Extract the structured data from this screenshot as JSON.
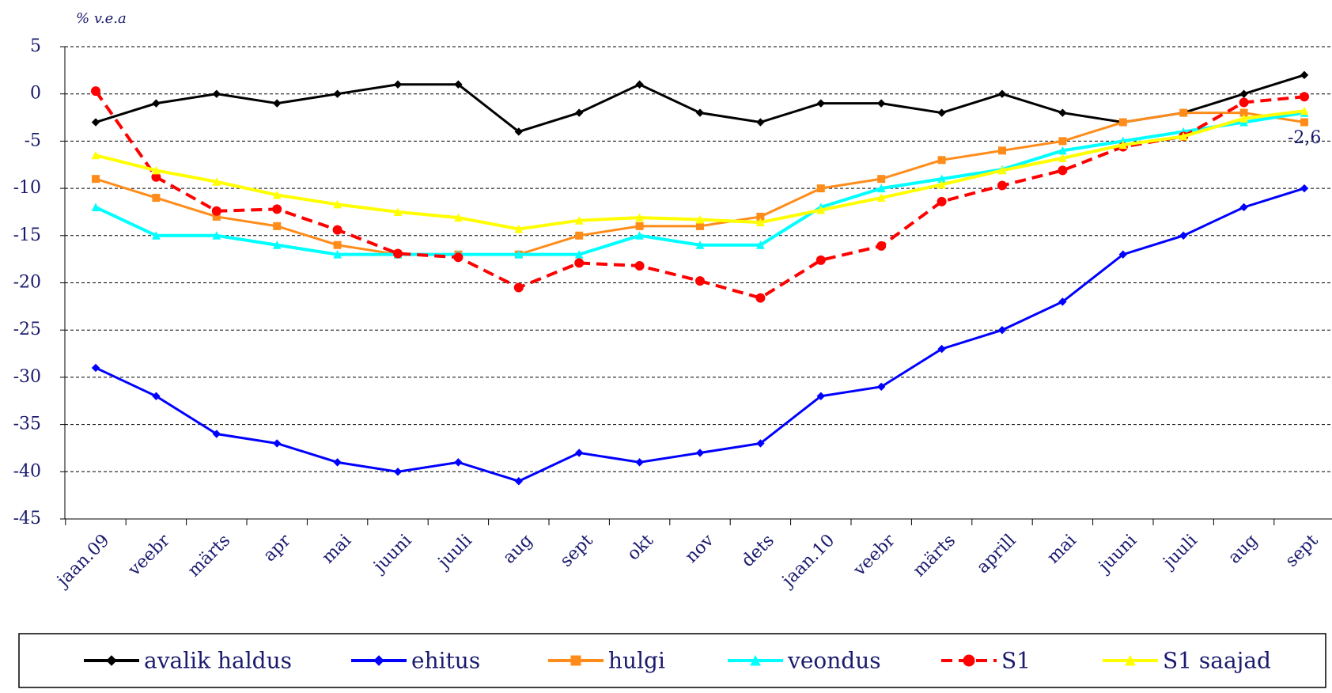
{
  "chart_data": {
    "type": "line",
    "y_label": "% v.e.a",
    "categories": [
      "jaan.09",
      "veebr",
      "märts",
      "apr",
      "mai",
      "juuni",
      "juuli",
      "aug",
      "sept",
      "okt",
      "nov",
      "dets",
      "jaan.10",
      "veebr",
      "märts",
      "aprill",
      "mai",
      "juuni",
      "juuli",
      "aug",
      "sept"
    ],
    "series": [
      {
        "name": "avalik haldus",
        "color": "#000000",
        "marker": "diamond",
        "dash": false,
        "values": [
          -3,
          -1,
          0,
          -1,
          0,
          1,
          1,
          -4,
          -2,
          1,
          -2,
          -3,
          -1,
          -1,
          -2,
          0,
          -2,
          -3,
          -2,
          0,
          2
        ]
      },
      {
        "name": "ehitus",
        "color": "#0000ff",
        "marker": "diamond",
        "dash": false,
        "values": [
          -29,
          -32,
          -36,
          -37,
          -39,
          -40,
          -39,
          -41,
          -38,
          -39,
          -38,
          -37,
          -32,
          -31,
          -27,
          -25,
          -22,
          -17,
          -15,
          -12,
          -10
        ]
      },
      {
        "name": "hulgi",
        "color": "#ff8c1a",
        "marker": "square",
        "dash": false,
        "values": [
          -9,
          -11,
          -13,
          -14,
          -16,
          -17,
          -17,
          -17,
          -15,
          -14,
          -14,
          -13,
          -10,
          -9,
          -7,
          -6,
          -5,
          -3,
          -2,
          -2,
          -3
        ]
      },
      {
        "name": "veondus",
        "color": "#00ffff",
        "marker": "triangle",
        "dash": false,
        "values": [
          -12,
          -15,
          -15,
          -16,
          -17,
          -17,
          -17,
          -17,
          -17,
          -15,
          -16,
          -16,
          -12,
          -10,
          -9,
          -8,
          -6,
          -5,
          -4,
          -3,
          -2
        ]
      },
      {
        "name": "S1",
        "color": "#ff0000",
        "marker": "circle",
        "dash": true,
        "values": [
          0.3,
          -8.8,
          -12.4,
          -12.2,
          -14.4,
          -16.9,
          -17.3,
          -20.5,
          -17.9,
          -18.2,
          -19.8,
          -21.6,
          -17.6,
          -16.1,
          -11.4,
          -9.7,
          -8.1,
          -5.6,
          -4.5,
          -0.9,
          -0.3
        ]
      },
      {
        "name": "S1 saajad",
        "color": "#ffff00",
        "marker": "triangle",
        "dash": false,
        "values": [
          -6.5,
          -8.1,
          -9.3,
          -10.7,
          -11.7,
          -12.5,
          -13.1,
          -14.3,
          -13.4,
          -13.1,
          -13.3,
          -13.6,
          -12.3,
          -11,
          -9.6,
          -8.1,
          -6.8,
          -5.4,
          -4.5,
          -2.6,
          -1.8
        ]
      }
    ],
    "annotation": "-2,6",
    "ylim": [
      -45,
      5
    ],
    "yticks": [
      5,
      0,
      -5,
      -10,
      -15,
      -20,
      -25,
      -30,
      -35,
      -40,
      -45
    ],
    "grid": true,
    "legend": "bottom"
  }
}
